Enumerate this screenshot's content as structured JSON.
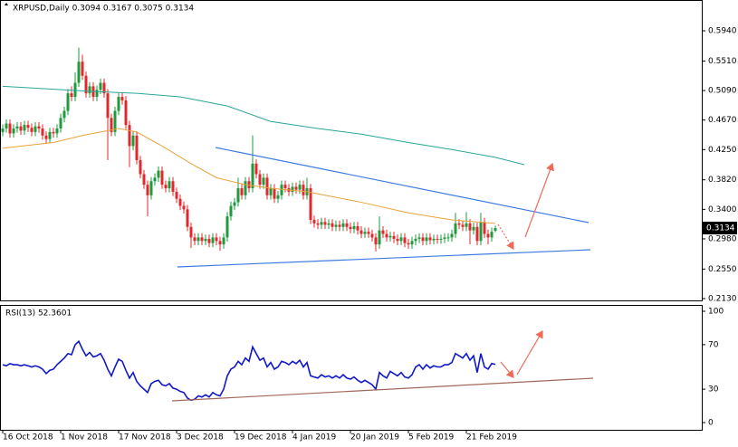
{
  "chart_data": [
    {
      "type": "candlestick",
      "title": "XRPUSD,Daily  0.3094 0.3167 0.3075 0.3134",
      "up_color": "#1e9b3c",
      "down_color": "#e0282e",
      "open": [
        0.45,
        0.455,
        0.462,
        0.448,
        0.455,
        0.458,
        0.452,
        0.46,
        0.456,
        0.45,
        0.458,
        0.455,
        0.445,
        0.44,
        0.45,
        0.448,
        0.455,
        0.47,
        0.48,
        0.505,
        0.5,
        0.52,
        0.55,
        0.53,
        0.505,
        0.515,
        0.5,
        0.51,
        0.52,
        0.505,
        0.47,
        0.45,
        0.48,
        0.5,
        0.495,
        0.46,
        0.43,
        0.445,
        0.41,
        0.39,
        0.375,
        0.36,
        0.38,
        0.385,
        0.395,
        0.375,
        0.37,
        0.38,
        0.365,
        0.355,
        0.345,
        0.34,
        0.315,
        0.3,
        0.295,
        0.3,
        0.295,
        0.298,
        0.292,
        0.3,
        0.295,
        0.29,
        0.3,
        0.33,
        0.345,
        0.35,
        0.37,
        0.36,
        0.38,
        0.37,
        0.405,
        0.39,
        0.375,
        0.385,
        0.36,
        0.37,
        0.355,
        0.36,
        0.375,
        0.37,
        0.365,
        0.372,
        0.368,
        0.375,
        0.36,
        0.37,
        0.325,
        0.32,
        0.318,
        0.322,
        0.318,
        0.32,
        0.315,
        0.318,
        0.315,
        0.32,
        0.315,
        0.312,
        0.316,
        0.31,
        0.305,
        0.308,
        0.305,
        0.3,
        0.29,
        0.31,
        0.305,
        0.3,
        0.302,
        0.298,
        0.295,
        0.3,
        0.292,
        0.29,
        0.295,
        0.298,
        0.3,
        0.295,
        0.3,
        0.296,
        0.298,
        0.297,
        0.298,
        0.3,
        0.3,
        0.305,
        0.32,
        0.318,
        0.315,
        0.32,
        0.31,
        0.315,
        0.295,
        0.322,
        0.305,
        0.3,
        0.3094
      ],
      "high": [
        0.461,
        0.468,
        0.468,
        0.461,
        0.464,
        0.464,
        0.466,
        0.466,
        0.462,
        0.464,
        0.464,
        0.461,
        0.451,
        0.456,
        0.456,
        0.461,
        0.476,
        0.486,
        0.511,
        0.515,
        0.535,
        0.57,
        0.56,
        0.536,
        0.521,
        0.521,
        0.516,
        0.526,
        0.526,
        0.511,
        0.476,
        0.486,
        0.506,
        0.506,
        0.501,
        0.466,
        0.451,
        0.451,
        0.416,
        0.396,
        0.381,
        0.386,
        0.391,
        0.401,
        0.401,
        0.381,
        0.386,
        0.386,
        0.371,
        0.361,
        0.351,
        0.346,
        0.321,
        0.306,
        0.306,
        0.306,
        0.304,
        0.304,
        0.306,
        0.306,
        0.301,
        0.306,
        0.336,
        0.351,
        0.356,
        0.385,
        0.376,
        0.386,
        0.386,
        0.445,
        0.411,
        0.396,
        0.391,
        0.391,
        0.376,
        0.376,
        0.366,
        0.381,
        0.381,
        0.376,
        0.378,
        0.378,
        0.381,
        0.381,
        0.385,
        0.376,
        0.331,
        0.326,
        0.328,
        0.328,
        0.326,
        0.326,
        0.324,
        0.324,
        0.326,
        0.326,
        0.321,
        0.322,
        0.322,
        0.316,
        0.314,
        0.314,
        0.311,
        0.306,
        0.33,
        0.316,
        0.311,
        0.308,
        0.308,
        0.304,
        0.306,
        0.306,
        0.298,
        0.301,
        0.304,
        0.306,
        0.306,
        0.306,
        0.306,
        0.304,
        0.304,
        0.304,
        0.306,
        0.306,
        0.311,
        0.335,
        0.326,
        0.324,
        0.336,
        0.326,
        0.321,
        0.321,
        0.335,
        0.328,
        0.311,
        0.314,
        0.3167
      ],
      "low": [
        0.444,
        0.449,
        0.442,
        0.442,
        0.449,
        0.446,
        0.446,
        0.45,
        0.444,
        0.444,
        0.449,
        0.439,
        0.434,
        0.434,
        0.442,
        0.442,
        0.449,
        0.464,
        0.474,
        0.494,
        0.494,
        0.514,
        0.524,
        0.499,
        0.499,
        0.494,
        0.494,
        0.504,
        0.499,
        0.41,
        0.444,
        0.444,
        0.474,
        0.489,
        0.454,
        0.4,
        0.424,
        0.404,
        0.384,
        0.369,
        0.33,
        0.354,
        0.374,
        0.379,
        0.369,
        0.364,
        0.364,
        0.359,
        0.349,
        0.339,
        0.334,
        0.309,
        0.285,
        0.289,
        0.289,
        0.289,
        0.289,
        0.286,
        0.286,
        0.289,
        0.281,
        0.284,
        0.294,
        0.324,
        0.339,
        0.344,
        0.354,
        0.354,
        0.364,
        0.364,
        0.384,
        0.369,
        0.369,
        0.354,
        0.354,
        0.349,
        0.349,
        0.354,
        0.364,
        0.359,
        0.359,
        0.362,
        0.362,
        0.354,
        0.354,
        0.319,
        0.314,
        0.312,
        0.312,
        0.312,
        0.312,
        0.309,
        0.309,
        0.309,
        0.309,
        0.309,
        0.306,
        0.306,
        0.304,
        0.299,
        0.299,
        0.299,
        0.294,
        0.28,
        0.284,
        0.299,
        0.294,
        0.294,
        0.292,
        0.289,
        0.289,
        0.286,
        0.284,
        0.284,
        0.289,
        0.292,
        0.289,
        0.289,
        0.29,
        0.29,
        0.291,
        0.291,
        0.292,
        0.294,
        0.294,
        0.299,
        0.312,
        0.309,
        0.309,
        0.29,
        0.304,
        0.289,
        0.289,
        0.299,
        0.29,
        0.294,
        0.3075
      ],
      "close": [
        0.455,
        0.462,
        0.448,
        0.455,
        0.458,
        0.452,
        0.46,
        0.456,
        0.45,
        0.458,
        0.455,
        0.445,
        0.44,
        0.45,
        0.448,
        0.455,
        0.47,
        0.48,
        0.505,
        0.5,
        0.52,
        0.55,
        0.53,
        0.505,
        0.515,
        0.5,
        0.51,
        0.52,
        0.505,
        0.47,
        0.45,
        0.48,
        0.5,
        0.495,
        0.46,
        0.43,
        0.445,
        0.41,
        0.39,
        0.375,
        0.36,
        0.38,
        0.385,
        0.395,
        0.375,
        0.37,
        0.38,
        0.365,
        0.355,
        0.345,
        0.34,
        0.315,
        0.3,
        0.295,
        0.3,
        0.295,
        0.298,
        0.292,
        0.3,
        0.295,
        0.29,
        0.3,
        0.33,
        0.345,
        0.35,
        0.37,
        0.36,
        0.38,
        0.37,
        0.405,
        0.39,
        0.375,
        0.385,
        0.36,
        0.37,
        0.355,
        0.36,
        0.375,
        0.37,
        0.365,
        0.372,
        0.368,
        0.375,
        0.36,
        0.37,
        0.325,
        0.32,
        0.318,
        0.322,
        0.318,
        0.32,
        0.315,
        0.318,
        0.315,
        0.32,
        0.315,
        0.312,
        0.316,
        0.31,
        0.305,
        0.308,
        0.305,
        0.3,
        0.29,
        0.31,
        0.305,
        0.3,
        0.302,
        0.298,
        0.295,
        0.3,
        0.292,
        0.29,
        0.295,
        0.298,
        0.3,
        0.295,
        0.3,
        0.296,
        0.298,
        0.297,
        0.298,
        0.3,
        0.3,
        0.305,
        0.32,
        0.318,
        0.315,
        0.32,
        0.31,
        0.315,
        0.295,
        0.322,
        0.305,
        0.3,
        0.308,
        0.3134
      ],
      "overlays": [
        {
          "color": "#e8a33a",
          "x": [
            0,
            14,
            22,
            32,
            37,
            44,
            52,
            59,
            67,
            74,
            84,
            99,
            112,
            124,
            136
          ],
          "values": [
            0.427,
            0.435,
            0.445,
            0.455,
            0.45,
            0.43,
            0.405,
            0.385,
            0.375,
            0.37,
            0.365,
            0.35,
            0.335,
            0.325,
            0.32
          ]
        },
        {
          "color": "#2aa59a",
          "x": [
            0,
            24,
            37,
            49,
            62,
            74,
            87,
            99,
            112,
            124,
            136,
            144
          ],
          "values": [
            0.515,
            0.508,
            0.505,
            0.5,
            0.487,
            0.465,
            0.455,
            0.447,
            0.435,
            0.425,
            0.414,
            0.4035
          ]
        }
      ],
      "last_price": {
        "value": 0.3134,
        "label": "0.3134"
      },
      "xlim": [
        -0.75,
        193
      ],
      "ylim": [
        0.2104,
        0.6378
      ],
      "yticks": [
        {
          "value": 0.594,
          "label": "0.5940"
        },
        {
          "value": 0.551,
          "label": "0.5510"
        },
        {
          "value": 0.509,
          "label": "0.5090"
        },
        {
          "value": 0.467,
          "label": "0.4670"
        },
        {
          "value": 0.425,
          "label": "0.4250"
        },
        {
          "value": 0.382,
          "label": "0.3820"
        },
        {
          "value": 0.34,
          "label": "0.3400"
        },
        {
          "value": 0.298,
          "label": "0.2980"
        },
        {
          "value": 0.255,
          "label": "0.2550"
        },
        {
          "value": 0.213,
          "label": "0.2130"
        }
      ]
    },
    {
      "type": "line",
      "title": "RSI(13) 52.3601",
      "color": "#1018c8",
      "values": [
        52,
        51,
        53,
        52,
        52,
        51,
        52,
        51,
        50,
        51,
        50,
        48,
        44,
        47,
        48,
        52,
        55,
        58,
        62,
        61,
        70,
        73,
        66,
        60,
        63,
        59,
        60,
        62,
        56,
        48,
        42,
        50,
        57,
        55,
        47,
        40,
        45,
        37,
        33,
        30,
        27,
        35,
        37,
        38,
        34,
        33,
        35,
        31,
        30,
        28,
        27,
        22,
        20,
        21,
        24,
        23,
        25,
        23,
        27,
        25,
        24,
        30,
        42,
        48,
        50,
        55,
        52,
        58,
        55,
        68,
        62,
        56,
        58,
        50,
        54,
        48,
        50,
        55,
        54,
        52,
        55,
        53,
        56,
        50,
        54,
        42,
        41,
        40,
        43,
        41,
        42,
        40,
        42,
        40,
        43,
        40,
        39,
        41,
        38,
        36,
        38,
        36,
        34,
        30,
        45,
        42,
        40,
        46,
        44,
        42,
        45,
        41,
        40,
        43,
        50,
        52,
        48,
        52,
        49,
        51,
        50,
        50,
        52,
        52,
        54,
        62,
        60,
        58,
        62,
        56,
        60,
        45,
        62,
        50,
        48,
        53,
        52.3601
      ],
      "xlim": [
        -0.75,
        193
      ],
      "xticks": [
        {
          "value": 0,
          "label": "16 Oct 2018"
        },
        {
          "value": 16,
          "label": "1 Nov 2018"
        },
        {
          "value": 32,
          "label": "17 Nov 2018"
        },
        {
          "value": 48,
          "label": "3 Dec 2018"
        },
        {
          "value": 64,
          "label": "19 Dec 2018"
        },
        {
          "value": 80,
          "label": "4 Jan 2019"
        },
        {
          "value": 96,
          "label": "20 Jan 2019"
        },
        {
          "value": 112,
          "label": "5 Feb 2019"
        },
        {
          "value": 128,
          "label": "21 Feb 2019"
        }
      ],
      "ylim": [
        -6.5,
        105.7
      ],
      "yticks": [
        100,
        70,
        30,
        0
      ]
    }
  ]
}
